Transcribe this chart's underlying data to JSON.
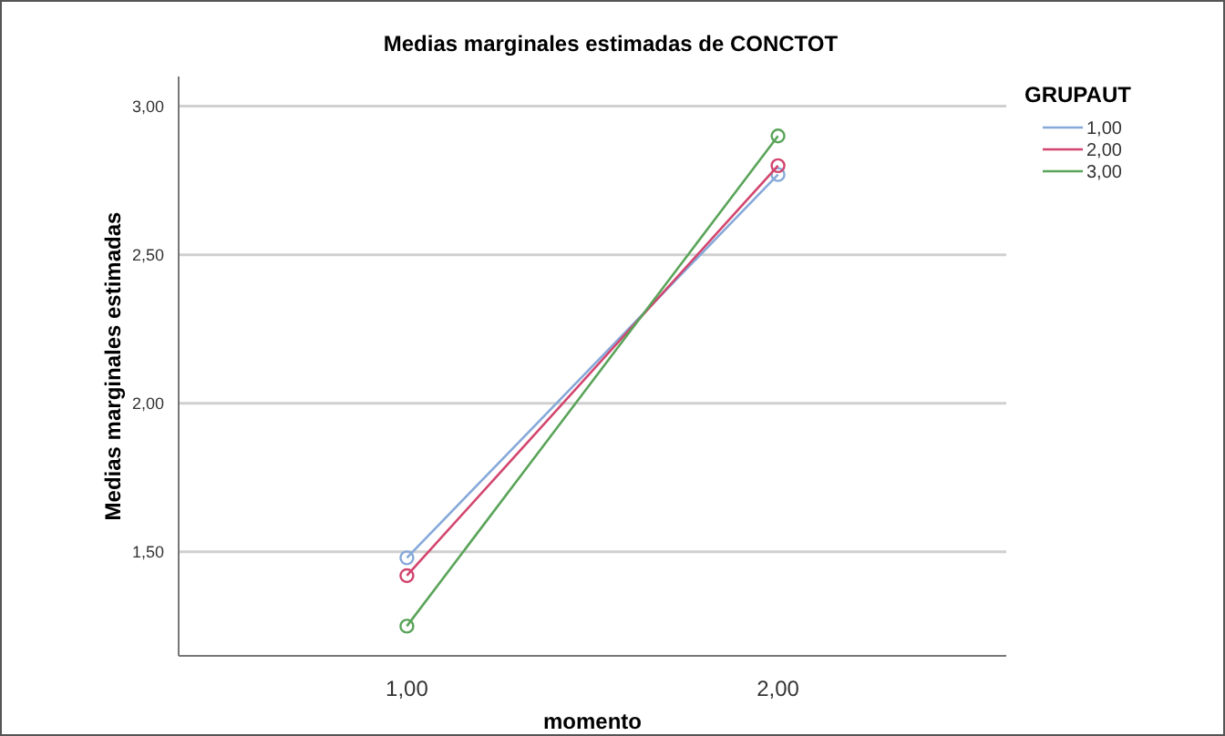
{
  "chart_data": {
    "type": "line",
    "title": "Medias marginales estimadas de CONCTOT",
    "xlabel": "momento",
    "ylabel": "Medias marginales estimadas",
    "legend_title": "GRUPAUT",
    "categories": [
      "1,00",
      "2,00"
    ],
    "series": [
      {
        "name": "1,00",
        "color": "#86a9d9",
        "values": [
          1.48,
          2.77
        ]
      },
      {
        "name": "2,00",
        "color": "#d2456e",
        "values": [
          1.42,
          2.8
        ]
      },
      {
        "name": "3,00",
        "color": "#5aa45a",
        "values": [
          1.25,
          2.9
        ]
      }
    ],
    "ylim": [
      1.15,
      3.1
    ],
    "yticks": [
      {
        "value": 1.5,
        "label": "1,50"
      },
      {
        "value": 2,
        "label": "2,00"
      },
      {
        "value": 2.5,
        "label": "2,50"
      },
      {
        "value": 3,
        "label": "3,00"
      }
    ],
    "grid": "y",
    "legend": "top right",
    "marker": "circle",
    "line_style": "solid"
  }
}
